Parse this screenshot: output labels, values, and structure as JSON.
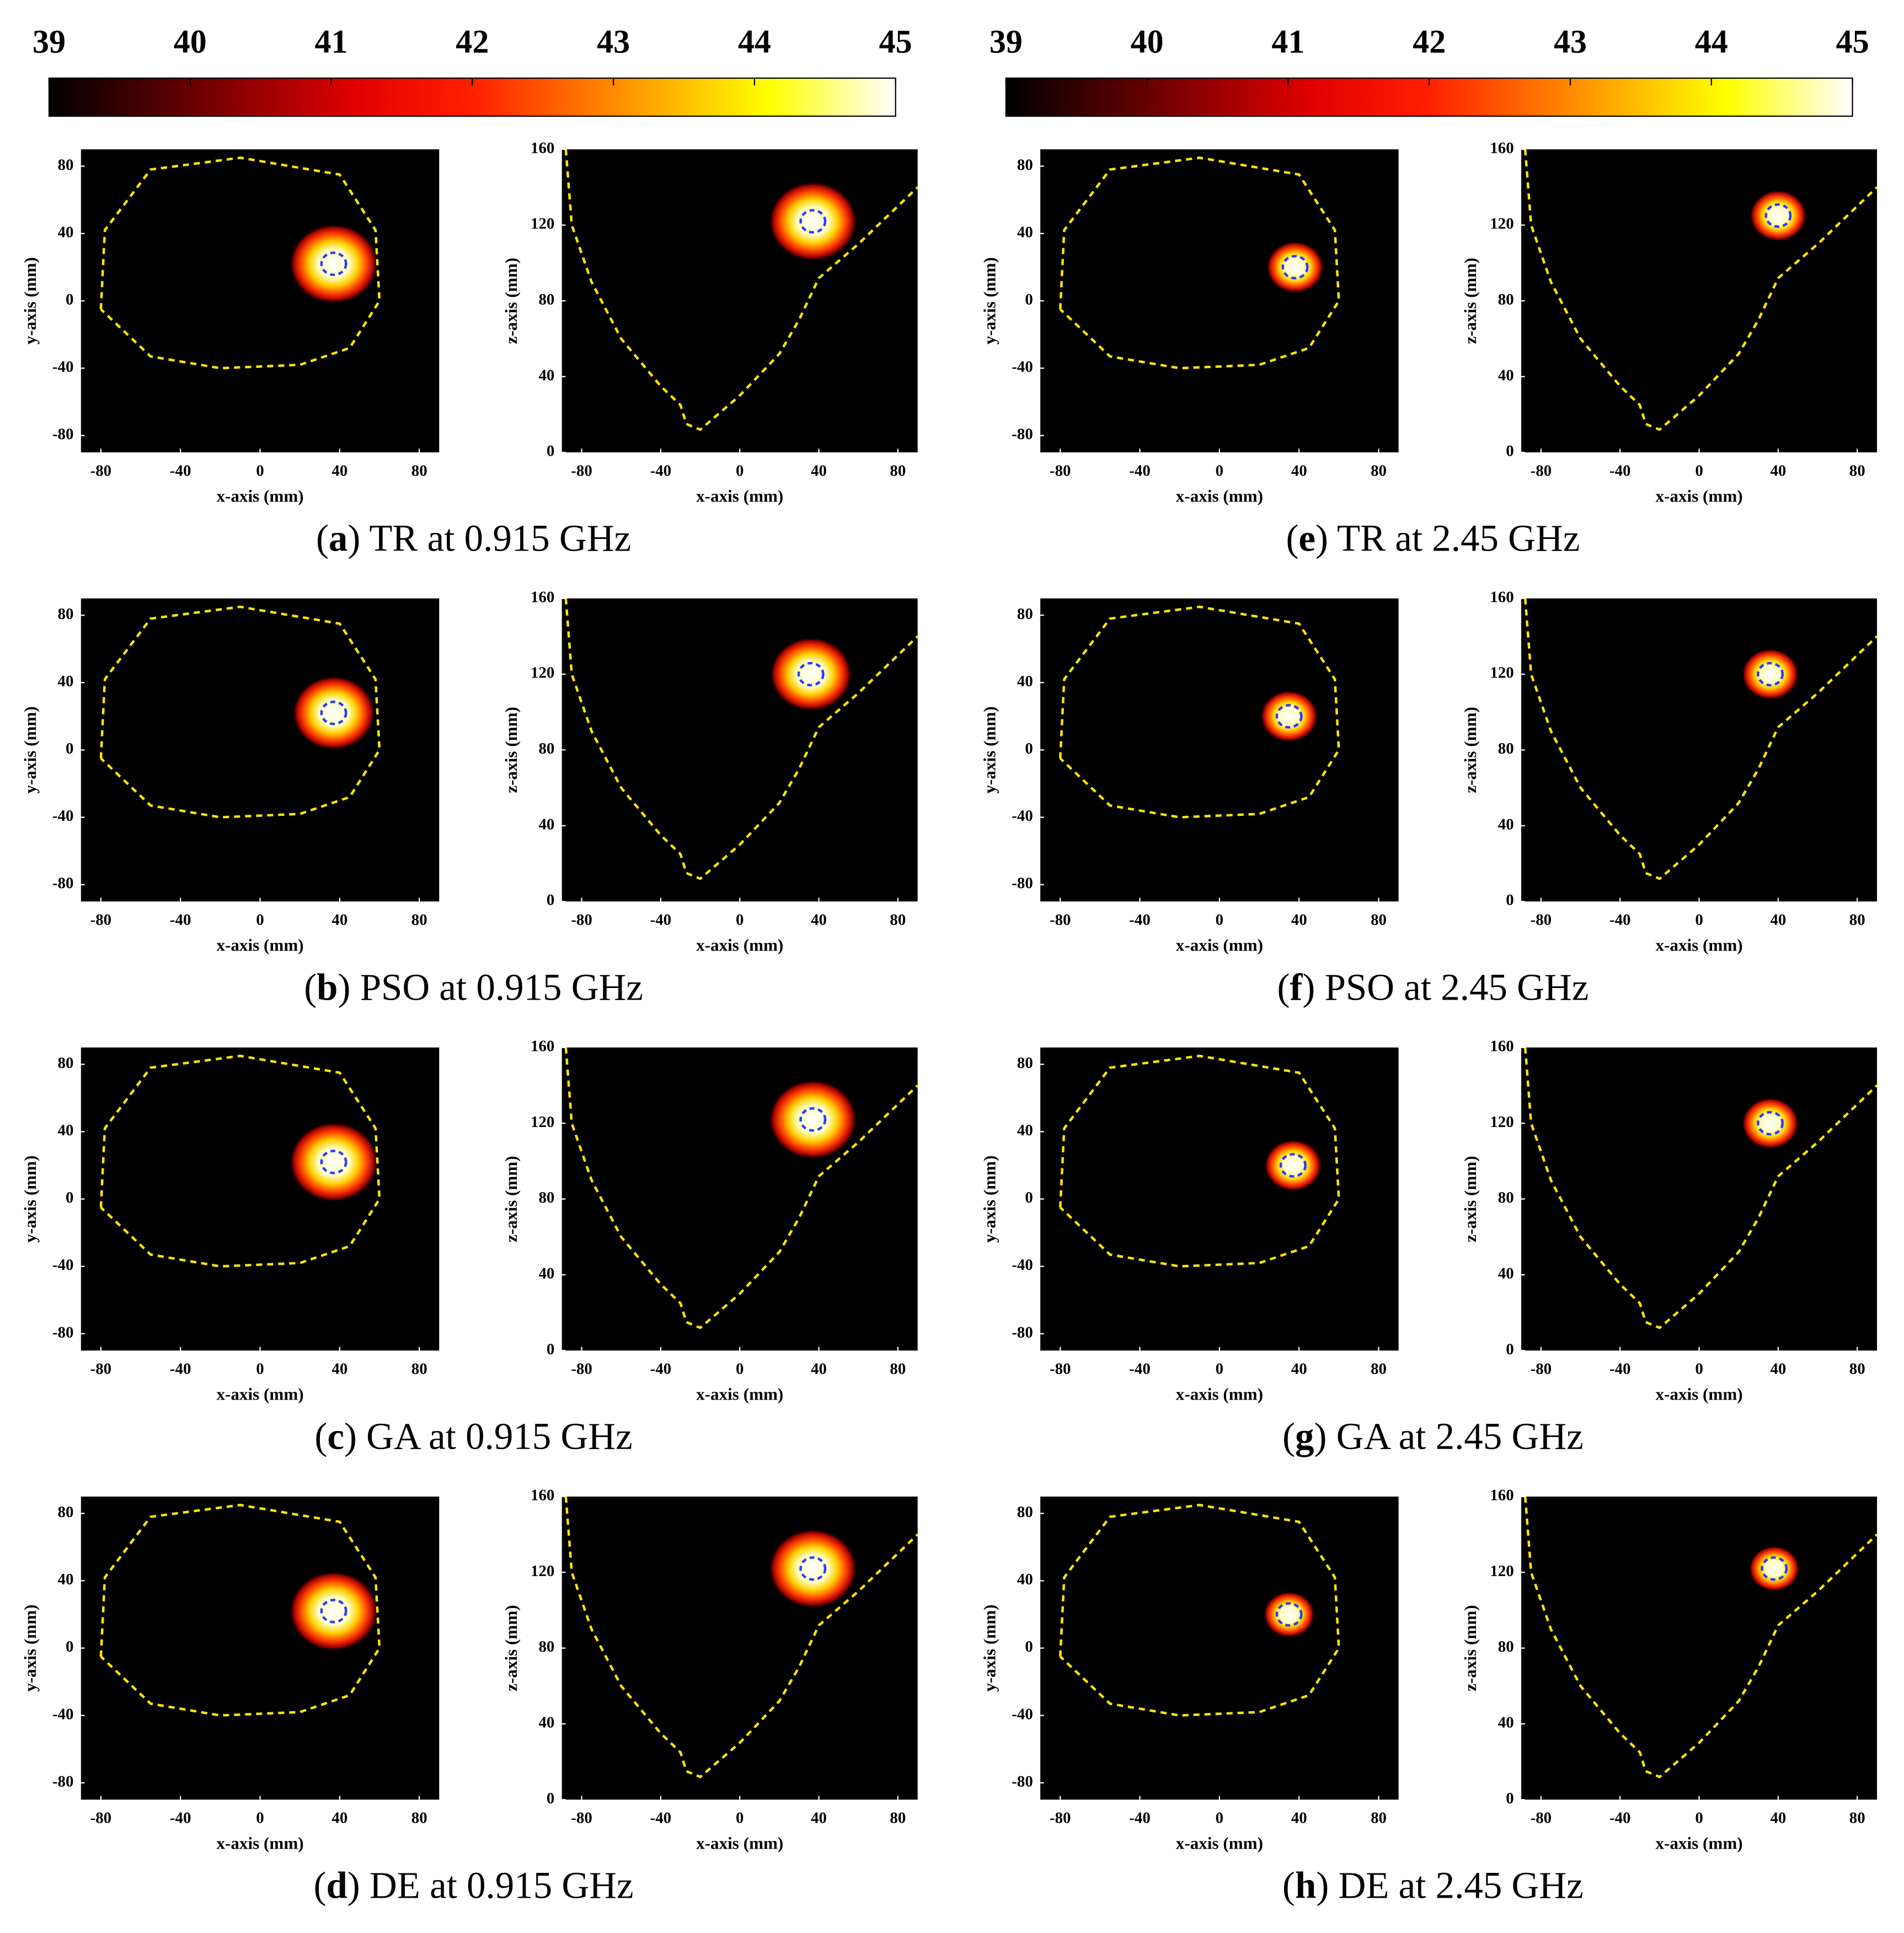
{
  "chart_data": [
    {
      "type": "colorbar",
      "range": [
        39,
        45
      ],
      "ticks": [
        39,
        40,
        41,
        42,
        43,
        44,
        45
      ]
    },
    {
      "type": "colorbar",
      "range": [
        39,
        45
      ],
      "ticks": [
        39,
        40,
        41,
        42,
        43,
        44,
        45
      ]
    },
    {
      "type": "heatmap-pair",
      "x_label": "x-axis (mm)",
      "y_label": "y-axis (mm)",
      "z_label": "z-axis (mm)",
      "xlim": [
        -90,
        90
      ],
      "ylim": [
        -90,
        90
      ],
      "zlim": [
        0,
        160
      ],
      "xticks": [
        -80,
        -40,
        0,
        40,
        80
      ],
      "yticks": [
        -80,
        -40,
        0,
        40,
        80
      ],
      "zticks": [
        0,
        40,
        80,
        120,
        160
      ],
      "panels": [
        {
          "caption": [
            "(",
            "a",
            ") TR at 0.915 GHz"
          ],
          "spot_xy": [
            37,
            22
          ],
          "spot_xz": [
            37,
            122
          ],
          "spot_radius": 14
        },
        {
          "caption": [
            "(",
            "b",
            ") PSO at 0.915 GHz"
          ],
          "spot_xy": [
            37,
            22
          ],
          "spot_xz": [
            36,
            120
          ],
          "spot_radius": 13
        },
        {
          "caption": [
            "(",
            "c",
            ") GA at 0.915 GHz"
          ],
          "spot_xy": [
            37,
            22
          ],
          "spot_xz": [
            37,
            122
          ],
          "spot_radius": 14
        },
        {
          "caption": [
            "(",
            "d",
            ") DE at 0.915 GHz"
          ],
          "spot_xy": [
            37,
            22
          ],
          "spot_xz": [
            37,
            122
          ],
          "spot_radius": 14
        },
        {
          "caption": [
            "(",
            "e",
            ") TR at 2.45 GHz"
          ],
          "spot_xy": [
            38,
            20
          ],
          "spot_xz": [
            40,
            125
          ],
          "spot_radius": 9
        },
        {
          "caption": [
            "(",
            "f",
            ") PSO at 2.45 GHz"
          ],
          "spot_xy": [
            35,
            20
          ],
          "spot_xz": [
            36,
            120
          ],
          "spot_radius": 9
        },
        {
          "caption": [
            "(",
            "g",
            ") GA at 2.45 GHz"
          ],
          "spot_xy": [
            37,
            20
          ],
          "spot_xz": [
            36,
            120
          ],
          "spot_radius": 9
        },
        {
          "caption": [
            "(",
            "h",
            ") DE at 2.45 GHz"
          ],
          "spot_xy": [
            35,
            20
          ],
          "spot_xz": [
            38,
            122
          ],
          "spot_radius": 8
        }
      ]
    }
  ]
}
